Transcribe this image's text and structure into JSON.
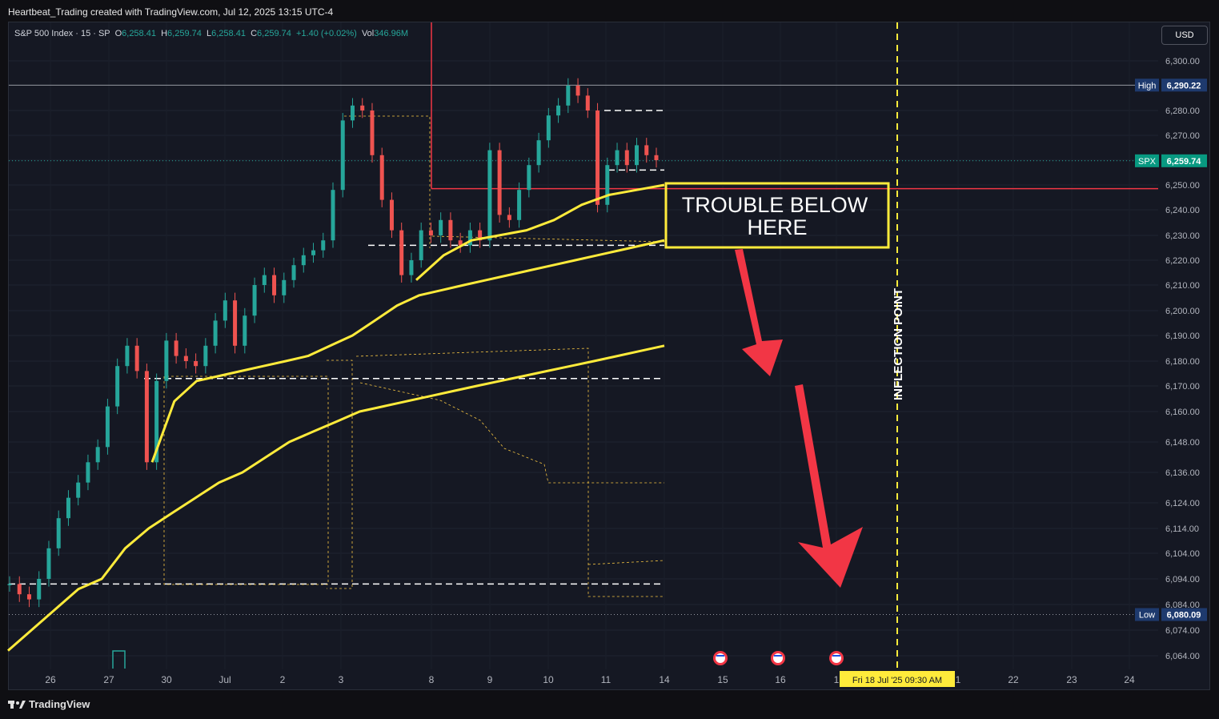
{
  "header": {
    "text": "Heartbeat_Trading created with TradingView.com, Jul 12, 2025 13:15 UTC-4"
  },
  "legend": {
    "symbol": "S&P 500 Index · 15 · SP",
    "open_label": "O",
    "open": "6,258.41",
    "high_label": "H",
    "high": "6,259.74",
    "low_label": "L",
    "low": "6,258.41",
    "close_label": "C",
    "close": "6,259.74",
    "change": "+1.40 (+0.02%)",
    "vol_label": "Vol",
    "vol": "346.96M"
  },
  "currency": "USD",
  "footer": {
    "brand": "TradingView",
    "logo": "tradingview-logo"
  },
  "colors": {
    "bg": "#151823",
    "up": "#26a69a",
    "down": "#ef5350",
    "vwap": "#ffeb3b",
    "annotation": "#ffeb3b",
    "arrow": "#f23645",
    "resistance": "#f23645"
  },
  "annotations": {
    "box_text_line1": "TROUBLE BELOW",
    "box_text_line2": "HERE",
    "vertical_label": "INFLECTION POINT",
    "date_label": "Fri 18 Jul '25   09:30 AM"
  },
  "price_badges": {
    "high_label": "High",
    "high_value": "6,290.22",
    "last_label": "SPX",
    "last_value": "6,259.74",
    "low_label": "Low",
    "low_value": "6,080.09"
  },
  "chart_data": {
    "type": "line",
    "title": "S&P 500 Index · 15 · SP",
    "price_axis": {
      "ticks": [
        6300,
        6280,
        6270,
        6260,
        6250,
        6240,
        6230,
        6220,
        6210,
        6200,
        6190,
        6180,
        6170,
        6160,
        6148,
        6136,
        6124,
        6114,
        6104,
        6094,
        6084,
        6074,
        6064
      ],
      "tick_labels": [
        "6,300.00",
        "6,280.00",
        "6,270.00",
        "6,260.00",
        "6,250.00",
        "6,240.00",
        "6,230.00",
        "6,220.00",
        "6,210.00",
        "6,200.00",
        "6,190.00",
        "6,180.00",
        "6,170.00",
        "6,160.00",
        "6,148.00",
        "6,136.00",
        "6,124.00",
        "6,114.00",
        "6,104.00",
        "6,094.00",
        "6,084.00",
        "6,074.00",
        "6,064.00"
      ],
      "range": [
        6060,
        6304
      ]
    },
    "time_axis": {
      "labels": [
        "26",
        "27",
        "30",
        "Jul",
        "2",
        "3",
        "8",
        "9",
        "10",
        "11",
        "14",
        "15",
        "16",
        "1",
        "1",
        "22",
        "23",
        "24"
      ]
    },
    "series": [
      {
        "name": "SPX",
        "kind": "candlestick",
        "values": [
          6092,
          6088,
          6086,
          6094,
          6106,
          6118,
          6126,
          6132,
          6140,
          6146,
          6162,
          6178,
          6186,
          6176,
          6140,
          6172,
          6188,
          6182,
          6180,
          6178,
          6186,
          6196,
          6204,
          6186,
          6198,
          6210,
          6214,
          6206,
          6212,
          6218,
          6222,
          6224,
          6228,
          6248,
          6276,
          6282,
          6280,
          6262,
          6244,
          6232,
          6214,
          6220,
          6232,
          6230,
          6236,
          6228,
          6226,
          6232,
          6228,
          6264,
          6238,
          6236,
          6248,
          6258,
          6268,
          6278,
          6282,
          6290,
          6286,
          6280,
          6242,
          6258,
          6264,
          6258,
          6266,
          6262,
          6260
        ]
      },
      {
        "name": "",
        "kind": "anchored-vwap-1",
        "values": [
          6066,
          6074,
          6082,
          6090,
          6094,
          6106,
          6114,
          6120,
          6126,
          6132,
          6136,
          6142,
          6148,
          6152,
          6156,
          6160,
          6162,
          6164,
          6166,
          6168,
          6170,
          6172,
          6174,
          6176,
          6178,
          6180,
          6182,
          6184,
          6186
        ]
      },
      {
        "name": "",
        "kind": "anchored-vwap-2",
        "values": [
          6140,
          6164,
          6172,
          6174,
          6176,
          6178,
          6180,
          6182,
          6186,
          6190,
          6196,
          6202,
          6206,
          6208,
          6210,
          6212,
          6214,
          6216,
          6218,
          6220,
          6222,
          6224,
          6226,
          6228
        ]
      },
      {
        "name": "",
        "kind": "anchored-vwap-3",
        "values": [
          6212,
          6222,
          6228,
          6230,
          6232,
          6236,
          6242,
          6246,
          6248,
          6250
        ]
      }
    ],
    "levels": [
      {
        "price": 6290.22,
        "label": "High"
      },
      {
        "price": 6259.74,
        "label": "SPX"
      },
      {
        "price": 6248.5,
        "label": "resistance"
      },
      {
        "price": 6080.09,
        "label": "Low"
      }
    ]
  }
}
